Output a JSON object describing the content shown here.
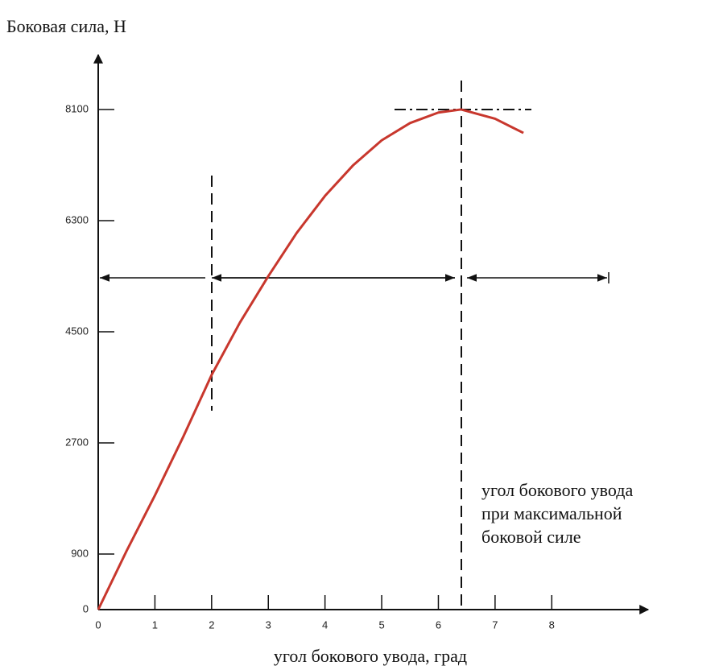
{
  "chart_data": {
    "type": "line",
    "ylabel": "Боковая сила, Н",
    "xlabel": "угол бокового увода, град",
    "annotation": [
      "угол бокового увода",
      "при максимальной",
      "боковой силе"
    ],
    "x": [
      0,
      0.5,
      1,
      1.5,
      2,
      2.5,
      3,
      3.5,
      4,
      4.5,
      5,
      5.5,
      6,
      6.4,
      7,
      7.5
    ],
    "series": [
      {
        "color": "#c8372d",
        "values": [
          0,
          950,
          1850,
          2800,
          3800,
          4650,
          5400,
          6100,
          6700,
          7200,
          7600,
          7880,
          8050,
          8100,
          7950,
          7720
        ]
      }
    ],
    "xlim": [
      0,
      9.7
    ],
    "xticks": [
      0,
      1,
      2,
      3,
      4,
      5,
      6,
      7,
      8
    ],
    "ylim": [
      0,
      8960
    ],
    "yticks": [
      0,
      900,
      2700,
      4500,
      6300,
      8100
    ]
  }
}
